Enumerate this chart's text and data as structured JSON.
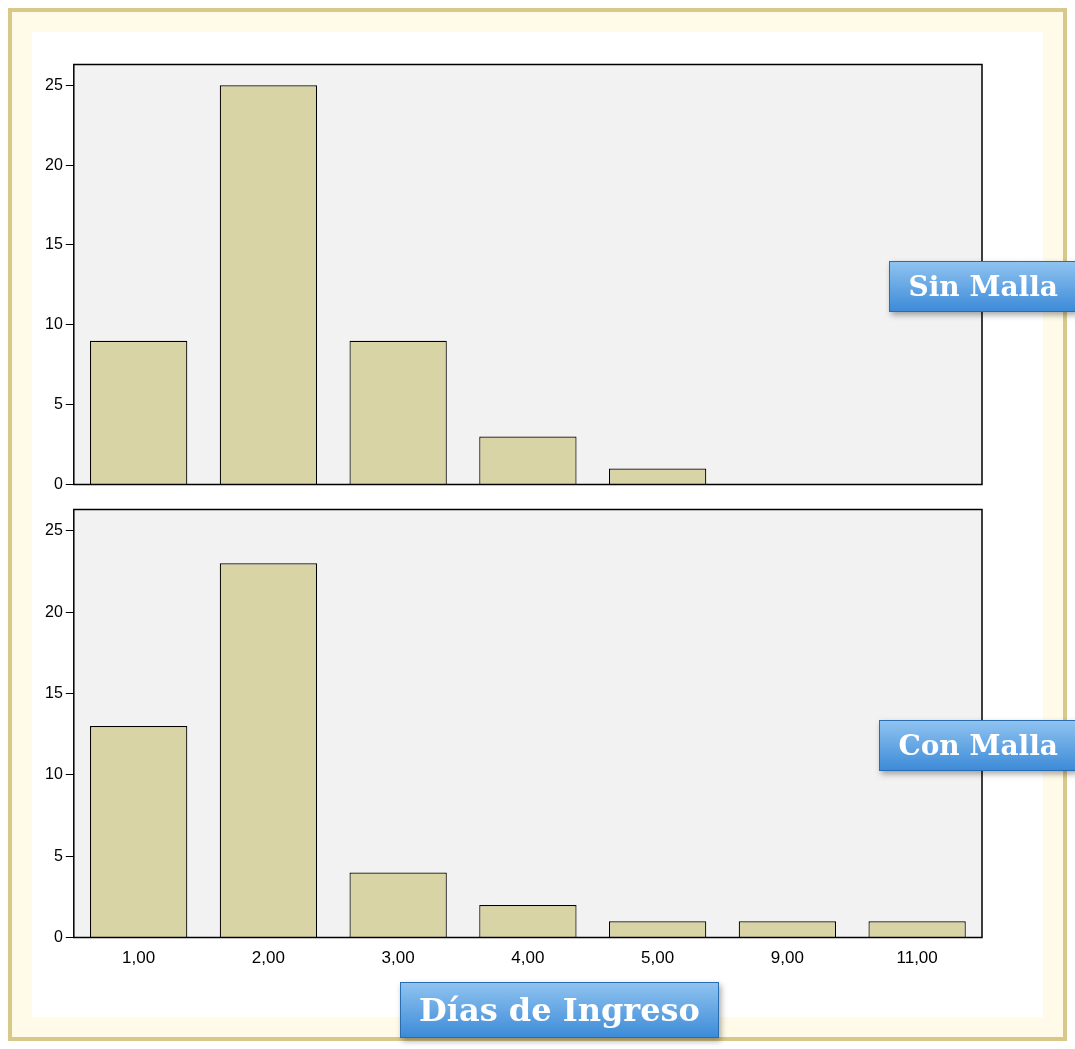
{
  "chart_data": [
    {
      "type": "bar",
      "annotations": [
        "Sin Malla"
      ],
      "categories": [
        "1,00",
        "2,00",
        "3,00",
        "4,00",
        "5,00",
        "9,00",
        "11,00"
      ],
      "values": [
        9,
        25,
        9,
        3,
        1,
        0,
        0
      ],
      "color": "#d9d4a6",
      "ylim": [
        0,
        26.3
      ],
      "yticks": [
        0,
        5,
        10,
        15,
        20,
        25
      ],
      "grid": false,
      "legend": false,
      "tick_labels": "y"
    },
    {
      "type": "bar",
      "annotations": [
        "Con Malla"
      ],
      "xlabel": "Días de Ingreso",
      "categories": [
        "1,00",
        "2,00",
        "3,00",
        "4,00",
        "5,00",
        "9,00",
        "11,00"
      ],
      "values": [
        13,
        23,
        4,
        2,
        1,
        1,
        1
      ],
      "color": "#d9d4a6",
      "ylim": [
        0,
        26.3
      ],
      "yticks": [
        0,
        5,
        10,
        15,
        20,
        25
      ],
      "grid": false,
      "legend": false
    }
  ]
}
